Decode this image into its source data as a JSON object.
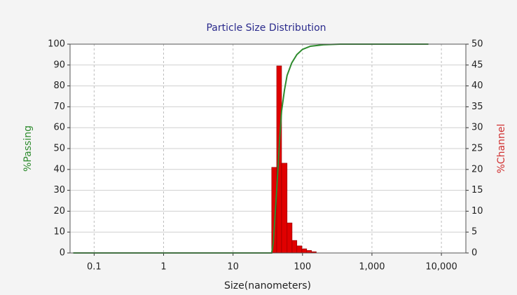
{
  "chart_data": {
    "type": "combo",
    "title": "Particle Size Distribution",
    "x_label": "Size(nanometers)",
    "y_label": "%Passing",
    "y2_label": "%Channel",
    "log_x": true,
    "grid": true,
    "xlim": [
      0.045,
      22500
    ],
    "xticks": [
      0.1,
      1,
      10,
      100,
      {
        "value": 1000,
        "label": "1,000"
      },
      {
        "value": 10000,
        "label": "10,000"
      }
    ],
    "ylim": [
      0,
      100
    ],
    "yticks": [
      0,
      10,
      20,
      30,
      40,
      50,
      60,
      70,
      80,
      90,
      100
    ],
    "y2lim": [
      0,
      50
    ],
    "y2ticks": [
      0,
      5,
      10,
      15,
      20,
      25,
      30,
      35,
      40,
      45,
      50
    ],
    "series": [
      {
        "type": "histogram",
        "axis": "y2",
        "color": "#e00000",
        "bins": [
          36,
          42.5,
          50,
          60,
          70.8,
          83,
          98,
          115,
          135,
          158
        ],
        "values": [
          20.5,
          44.8,
          21.5,
          7.2,
          3,
          1.7,
          1,
          0.6,
          0.3
        ]
      },
      {
        "type": "line",
        "color": "#2e8b2e",
        "x": [
          0.05,
          36,
          38,
          42.5,
          47,
          50,
          55,
          60,
          70,
          83,
          100,
          130,
          200,
          350,
          6500
        ],
        "values": [
          0,
          0,
          5,
          30,
          55,
          68,
          78,
          85,
          91,
          95,
          97.5,
          99,
          99.7,
          100,
          100
        ]
      }
    ]
  }
}
